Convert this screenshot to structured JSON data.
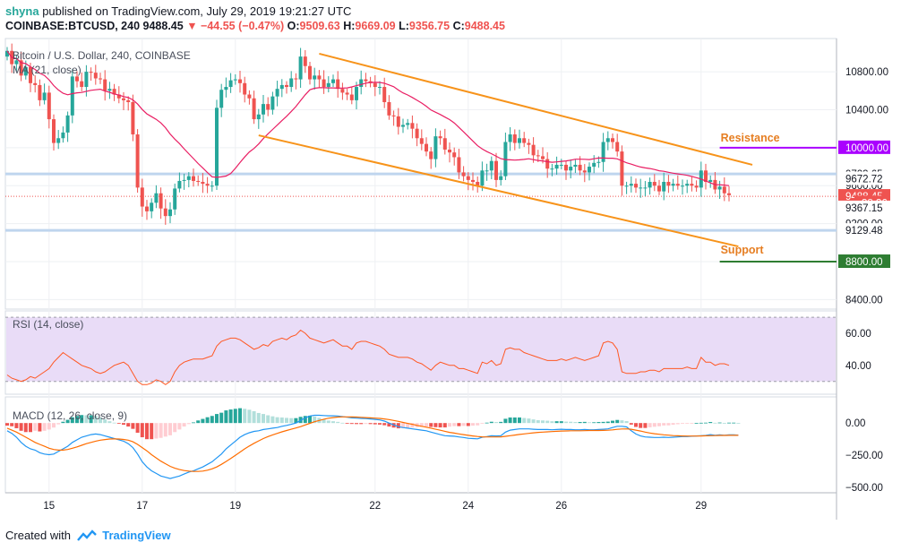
{
  "header": {
    "user": "shyna",
    "published": "published on TradingView.com, July 29, 2019 19:21:27 UTC",
    "symbol": "COINBASE:BTCUSD, 240",
    "price": "9488.45",
    "arrow": "▼",
    "change": "−44.55 (−0.47%)",
    "o_label": "O:",
    "o_value": "9509.63",
    "h_label": "H:",
    "h_value": "9669.09",
    "l_label": "L:",
    "l_value": "9356.75",
    "c_label": "C:",
    "c_value": "9488.45"
  },
  "footer": {
    "created_with": "Created with",
    "brand": "TradingView"
  },
  "colors": {
    "up": "#26a69a",
    "down": "#ef5350",
    "ma": "#e91e63",
    "channel": "#f7931a",
    "resistance": "#aa00ff",
    "support": "#2e7d32",
    "rsi": "#ff5722",
    "macd": "#2196f3",
    "signal": "#ff6d00",
    "rsi_band": "#e9dcf7"
  },
  "chart_data": [
    {
      "type": "candlestick",
      "title": "Bitcoin / U.S. Dollar, 240, COINBASE",
      "indicator_label": "MA (21, close)",
      "ylim": [
        8300,
        11150
      ],
      "y_ticks": [
        8400,
        8800,
        9200,
        9600,
        10000,
        10400,
        10800
      ],
      "y_tick_labels": [
        "8400.00",
        "8800.00",
        "9200.00",
        "9600.00",
        "10000.00",
        "10400.00",
        "10800.00"
      ],
      "x_tick_labels": [
        "15",
        "17",
        "19",
        "22",
        "24",
        "26",
        "29"
      ],
      "x_tick_bars": [
        9,
        29,
        49,
        79,
        99,
        119,
        149
      ],
      "price_labels": [
        {
          "text": "10000.00",
          "value": 10000,
          "kind": "resistance"
        },
        {
          "text": "9723.65",
          "value": 9723.65,
          "kind": "plain"
        },
        {
          "text": "9672.72",
          "value": 9672.72,
          "kind": "plain"
        },
        {
          "text": "9488.45",
          "value": 9488.45,
          "kind": "last"
        },
        {
          "text": "38:36",
          "value": 9420,
          "kind": "timer"
        },
        {
          "text": "9367.15",
          "value": 9367.15,
          "kind": "plain"
        },
        {
          "text": "9129.48",
          "value": 9129.48,
          "kind": "plain"
        },
        {
          "text": "8800.00",
          "value": 8800,
          "kind": "support"
        }
      ],
      "annotations": [
        {
          "text": "Resistance",
          "level": 10000,
          "bar_from": 153,
          "bar_to": 175
        },
        {
          "text": "Support",
          "level": 8800,
          "bar_from": 153,
          "bar_to": 175
        }
      ],
      "channel_lines": [
        {
          "from": {
            "bar": 67,
            "value": 10990
          },
          "to": {
            "bar": 160,
            "value": 9820
          }
        },
        {
          "from": {
            "bar": 54,
            "value": 10130
          },
          "to": {
            "bar": 157,
            "value": 8960
          }
        }
      ],
      "ma_period": 21,
      "close": [
        11020,
        10880,
        10920,
        10760,
        10850,
        10680,
        10660,
        10500,
        10580,
        10300,
        10050,
        10100,
        10160,
        10340,
        10750,
        10700,
        10640,
        10800,
        10790,
        10730,
        10720,
        10600,
        10620,
        10560,
        10520,
        10500,
        10480,
        10140,
        9580,
        9380,
        9330,
        9420,
        9520,
        9360,
        9280,
        9350,
        9570,
        9650,
        9660,
        9700,
        9650,
        9640,
        9620,
        9600,
        9600,
        10420,
        10610,
        10640,
        10710,
        10720,
        10680,
        10560,
        10520,
        10300,
        10350,
        10460,
        10400,
        10540,
        10620,
        10660,
        10640,
        10730,
        10720,
        10960,
        10860,
        10720,
        10760,
        10720,
        10640,
        10680,
        10720,
        10620,
        10580,
        10560,
        10500,
        10640,
        10720,
        10700,
        10680,
        10640,
        10640,
        10480,
        10340,
        10330,
        10220,
        10240,
        10260,
        10200,
        10100,
        10040,
        9960,
        9880,
        10120,
        10100,
        9980,
        9950,
        9900,
        9740,
        9700,
        9660,
        9640,
        9600,
        9760,
        9760,
        9860,
        9660,
        9700,
        10060,
        10140,
        10050,
        10100,
        10050,
        10030,
        9920,
        9910,
        9880,
        9780,
        9780,
        9820,
        9820,
        9760,
        9800,
        9820,
        9760,
        9740,
        9800,
        9840,
        9850,
        10060,
        10100,
        10060,
        9960,
        9600,
        9600,
        9620,
        9580,
        9580,
        9580,
        9640,
        9600,
        9540,
        9640,
        9600,
        9620,
        9600,
        9600,
        9620,
        9600,
        9580,
        9760,
        9640,
        9660,
        9560,
        9590,
        9520,
        9500
      ]
    },
    {
      "type": "line",
      "title": "RSI (14, close)",
      "ylim": [
        22,
        74
      ],
      "y_ticks": [
        40,
        60
      ],
      "y_tick_labels": [
        "40.00",
        "60.00"
      ],
      "band": [
        30,
        70
      ],
      "series": [
        {
          "name": "RSI",
          "values": [
            34,
            32,
            31,
            30,
            31,
            33,
            32,
            34,
            36,
            38,
            42,
            45,
            48,
            46,
            44,
            42,
            40,
            39,
            38,
            36,
            35,
            36,
            38,
            40,
            41,
            42,
            40,
            35,
            30,
            28,
            28,
            29,
            31,
            30,
            28,
            30,
            36,
            40,
            42,
            43,
            44,
            44,
            44,
            45,
            46,
            52,
            55,
            56,
            57,
            57,
            56,
            54,
            52,
            50,
            51,
            53,
            52,
            55,
            56,
            57,
            56,
            58,
            59,
            62,
            60,
            57,
            56,
            55,
            54,
            55,
            56,
            54,
            52,
            52,
            50,
            54,
            55,
            55,
            54,
            53,
            52,
            50,
            47,
            46,
            45,
            45,
            45,
            44,
            42,
            41,
            39,
            37,
            40,
            42,
            41,
            40,
            40,
            38,
            38,
            37,
            36,
            35,
            42,
            41,
            43,
            40,
            41,
            50,
            51,
            50,
            50,
            48,
            47,
            46,
            45,
            44,
            43,
            43,
            43,
            44,
            43,
            44,
            45,
            44,
            43,
            44,
            45,
            46,
            54,
            55,
            54,
            50,
            36,
            35,
            35,
            35,
            36,
            36,
            37,
            37,
            36,
            38,
            38,
            38,
            38,
            38,
            39,
            38,
            38,
            45,
            42,
            42,
            40,
            41,
            41,
            40
          ]
        }
      ]
    },
    {
      "type": "macd",
      "title": "MACD (12, 26, close, 9)",
      "ylim": [
        -540,
        140
      ],
      "y_ticks": [
        0,
        -250,
        -500
      ],
      "y_tick_labels": [
        "0.00",
        "−250.00",
        "−500.00"
      ],
      "series": [
        {
          "name": "MACD",
          "values": [
            -60,
            -80,
            -110,
            -150,
            -180,
            -200,
            -210,
            -230,
            -240,
            -245,
            -240,
            -220,
            -200,
            -180,
            -150,
            -130,
            -110,
            -100,
            -90,
            -85,
            -90,
            -100,
            -110,
            -120,
            -130,
            -140,
            -160,
            -190,
            -240,
            -300,
            -340,
            -370,
            -390,
            -410,
            -420,
            -430,
            -420,
            -410,
            -395,
            -380,
            -370,
            -355,
            -340,
            -320,
            -300,
            -270,
            -240,
            -200,
            -170,
            -140,
            -110,
            -90,
            -75,
            -65,
            -60,
            -50,
            -45,
            -40,
            -35,
            -25,
            -18,
            -10,
            0,
            20,
            40,
            55,
            60,
            60,
            58,
            56,
            56,
            55,
            50,
            45,
            40,
            38,
            36,
            35,
            32,
            28,
            24,
            15,
            0,
            -15,
            -28,
            -35,
            -40,
            -45,
            -50,
            -55,
            -60,
            -70,
            -80,
            -90,
            -98,
            -100,
            -102,
            -108,
            -112,
            -118,
            -120,
            -122,
            -110,
            -105,
            -98,
            -100,
            -98,
            -70,
            -55,
            -50,
            -45,
            -45,
            -45,
            -48,
            -50,
            -50,
            -50,
            -52,
            -50,
            -48,
            -50,
            -50,
            -52,
            -52,
            -50,
            -52,
            -52,
            -50,
            -48,
            -45,
            -35,
            -25,
            -25,
            -30,
            -60,
            -85,
            -100,
            -108,
            -110,
            -112,
            -112,
            -110,
            -112,
            -110,
            -108,
            -105,
            -105,
            -102,
            -100,
            -98,
            -96,
            -90,
            -95,
            -92,
            -95,
            -92,
            -92,
            -94
          ]
        },
        {
          "name": "Signal",
          "values": [
            -40,
            -55,
            -70,
            -90,
            -110,
            -130,
            -150,
            -165,
            -180,
            -195,
            -205,
            -210,
            -210,
            -205,
            -195,
            -185,
            -172,
            -160,
            -150,
            -140,
            -133,
            -128,
            -124,
            -123,
            -124,
            -127,
            -133,
            -145,
            -165,
            -190,
            -215,
            -245,
            -270,
            -295,
            -315,
            -335,
            -350,
            -360,
            -368,
            -372,
            -375,
            -375,
            -372,
            -365,
            -355,
            -340,
            -320,
            -298,
            -275,
            -250,
            -225,
            -200,
            -178,
            -157,
            -138,
            -120,
            -105,
            -92,
            -80,
            -68,
            -58,
            -48,
            -38,
            -28,
            -15,
            -2,
            10,
            20,
            30,
            37,
            42,
            46,
            48,
            48,
            47,
            46,
            44,
            42,
            40,
            38,
            36,
            32,
            27,
            20,
            13,
            5,
            -3,
            -10,
            -18,
            -25,
            -32,
            -40,
            -48,
            -56,
            -64,
            -72,
            -78,
            -84,
            -90,
            -95,
            -100,
            -104,
            -107,
            -108,
            -108,
            -108,
            -107,
            -103,
            -98,
            -93,
            -88,
            -84,
            -80,
            -76,
            -72,
            -70,
            -68,
            -66,
            -64,
            -62,
            -61,
            -60,
            -60,
            -60,
            -59,
            -58,
            -58,
            -58,
            -57,
            -56,
            -53,
            -49,
            -46,
            -45,
            -48,
            -55,
            -62,
            -70,
            -77,
            -83,
            -87,
            -91,
            -94,
            -97,
            -99,
            -100,
            -101,
            -101,
            -101,
            -100,
            -99,
            -98,
            -97,
            -96,
            -96,
            -95,
            -95,
            -95
          ]
        }
      ]
    }
  ]
}
